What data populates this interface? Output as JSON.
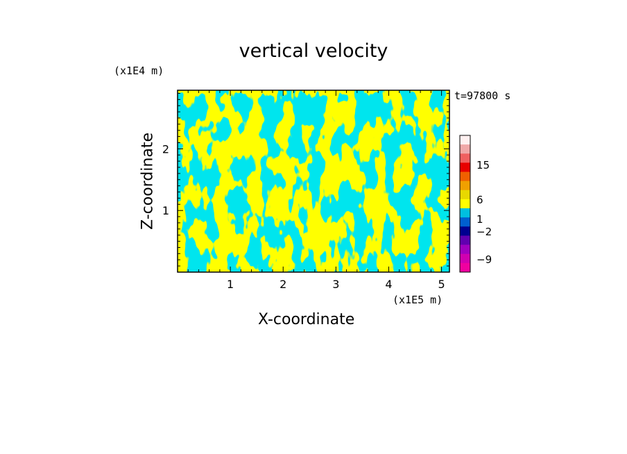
{
  "chart_data": {
    "type": "heatmap",
    "title": "vertical velocity",
    "xlabel": "X-coordinate",
    "ylabel": "Z-coordinate",
    "x_unit_label": "(x1E5 m)",
    "y_unit_label": "(x1E4 m)",
    "time_label": "t=97800 s",
    "xlim": [
      0,
      5.15
    ],
    "ylim": [
      0,
      2.95
    ],
    "x_ticks": [
      1,
      2,
      3,
      4,
      5
    ],
    "y_ticks": [
      1,
      2
    ],
    "field_colors": {
      "positive": "#ffff00",
      "negative": "#00e5ee"
    },
    "colorbar": {
      "labels": [
        "15",
        "6",
        "1",
        "−2",
        "−9"
      ],
      "levels_top_to_bottom": [
        {
          "color": "#fff0f0"
        },
        {
          "color": "#f0a8a8"
        },
        {
          "color": "#f06060"
        },
        {
          "color": "#e80000"
        },
        {
          "color": "#f06000"
        },
        {
          "color": "#f0a000"
        },
        {
          "color": "#e8d800"
        },
        {
          "color": "#ffff00"
        },
        {
          "color": "#00c0e0"
        },
        {
          "color": "#0060d0"
        },
        {
          "color": "#000090"
        },
        {
          "color": "#6000b0"
        },
        {
          "color": "#a000c0"
        },
        {
          "color": "#d000b0"
        },
        {
          "color": "#f000a0"
        }
      ]
    }
  }
}
